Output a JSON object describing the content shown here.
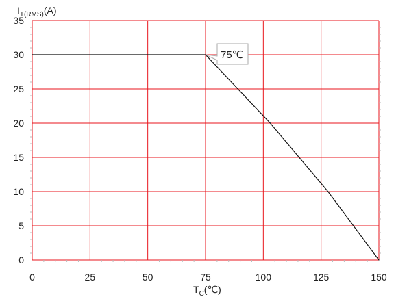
{
  "chart_data": {
    "type": "line",
    "x": [
      0,
      75,
      103,
      128,
      150
    ],
    "series": [
      {
        "values": [
          30,
          30,
          20,
          10,
          0
        ]
      }
    ],
    "xlim": [
      0,
      150
    ],
    "ylim": [
      0,
      35
    ],
    "x_ticks": [
      0,
      25,
      50,
      75,
      100,
      125,
      150
    ],
    "y_ticks": [
      0,
      5,
      10,
      15,
      20,
      25,
      30,
      35
    ],
    "xlabel": {
      "main": "T",
      "sub": "C",
      "unit": "(℃)"
    },
    "ylabel": {
      "main": "I",
      "sub": "T(RMS)",
      "unit": "(A)"
    },
    "grid": true,
    "annotation": {
      "text": "75℃",
      "x": 75,
      "y": 30
    },
    "colors": {
      "grid": "#e8161c",
      "line": "#111111",
      "minor_tick": "#bbbbbb",
      "callout_border": "#aaaaaa"
    }
  }
}
